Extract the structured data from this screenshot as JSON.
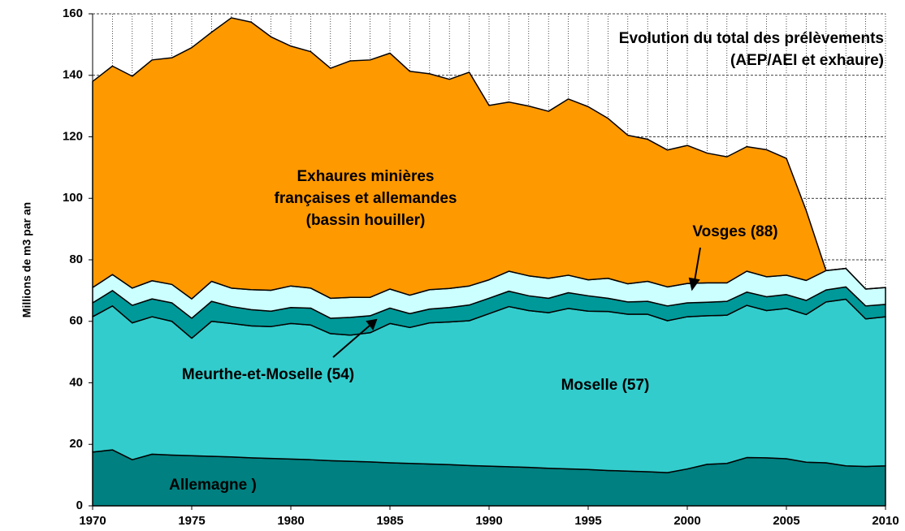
{
  "chart_data": {
    "type": "stacked_area",
    "title": [
      "Evolution du total des prélèvements",
      "(AEP/AEI et exhaure)"
    ],
    "ylabel": "Millions  de  m3  par  an",
    "x": [
      1970,
      1971,
      1972,
      1973,
      1974,
      1975,
      1976,
      1977,
      1978,
      1979,
      1980,
      1981,
      1982,
      1983,
      1984,
      1985,
      1986,
      1987,
      1988,
      1989,
      1990,
      1991,
      1992,
      1993,
      1994,
      1995,
      1996,
      1997,
      1998,
      1999,
      2000,
      2001,
      2002,
      2003,
      2004,
      2005,
      2006,
      2007,
      2008,
      2009,
      2010
    ],
    "xlim": [
      1970,
      2010
    ],
    "xticks": [
      1970,
      1975,
      1980,
      1985,
      1990,
      1995,
      2000,
      2005,
      2010
    ],
    "ylim": [
      0,
      160
    ],
    "yticks": [
      0,
      20,
      40,
      60,
      80,
      100,
      120,
      140,
      160
    ],
    "grid": true,
    "series": [
      {
        "name": [
          "Allemagne )"
        ],
        "color": "#008080",
        "values": [
          17.5,
          18.2,
          15,
          16.8,
          16.5,
          16.3,
          16.1,
          15.9,
          15.6,
          15.4,
          15.2,
          15,
          14.7,
          14.5,
          14.3,
          14,
          13.8,
          13.6,
          13.4,
          13.1,
          12.9,
          12.7,
          12.5,
          12.2,
          12,
          11.8,
          11.5,
          11.3,
          11.1,
          10.8,
          12,
          13.5,
          13.8,
          15.7,
          15.6,
          15.3,
          14.2,
          14,
          13,
          12.8,
          13
        ]
      },
      {
        "name": [
          "Moselle (57)"
        ],
        "color": "#33CCCC",
        "values": [
          44,
          46.8,
          44.5,
          44.7,
          43.5,
          38.2,
          43.9,
          43.4,
          42.9,
          42.9,
          44.1,
          43.8,
          41.3,
          41,
          42,
          45.3,
          44.2,
          45.9,
          46.4,
          47.1,
          49.6,
          52.1,
          51,
          50.6,
          52.2,
          51.5,
          51.7,
          51,
          51.2,
          49.4,
          49.5,
          48.3,
          48.2,
          49.5,
          47.9,
          48.9,
          48,
          52.3,
          54.2,
          48,
          48.5
        ]
      },
      {
        "name": [
          "Meurthe-et-Moselle (54)"
        ],
        "color": "#009999",
        "values": [
          4.5,
          5,
          5.7,
          5.8,
          6,
          6.5,
          6.5,
          5.5,
          5.3,
          5,
          5.2,
          5.5,
          5,
          5.8,
          5.5,
          5,
          4.5,
          4.5,
          4.7,
          5.1,
          5,
          5,
          4.8,
          4.7,
          5.1,
          5,
          4.3,
          4,
          4.2,
          4.8,
          4.5,
          4.4,
          4.5,
          4.3,
          4.5,
          4.5,
          4.6,
          3.9,
          4,
          4.2,
          4
        ]
      },
      {
        "name": [
          "Vosges (88)"
        ],
        "color": "#CCFFFF",
        "values": [
          5,
          5.2,
          5.6,
          5.9,
          6,
          6.3,
          6.5,
          6,
          6.5,
          6.8,
          7,
          6.5,
          6.5,
          6.5,
          6,
          6.2,
          6,
          6.3,
          6.2,
          6.2,
          6,
          6.5,
          6.5,
          6.5,
          5.7,
          5.2,
          6.5,
          5.9,
          6.5,
          6.2,
          6.3,
          6.3,
          6,
          6.8,
          6.5,
          6.3,
          6.5,
          6.3,
          6,
          5.5,
          5.5
        ]
      },
      {
        "name": [
          "Exhaures minières",
          "françaises et allemandes",
          "(bassin houiller)"
        ],
        "color": "#FF9900",
        "values": [
          67,
          67.8,
          68.9,
          71.8,
          73.7,
          81.7,
          81,
          87.9,
          87,
          82.4,
          78,
          76.9,
          74.8,
          76.9,
          77.2,
          76.7,
          72.8,
          70.2,
          68,
          69.5,
          56.7,
          55,
          55.2,
          54.3,
          57.3,
          56.3,
          52,
          48.3,
          46.2,
          44.5,
          44.9,
          42.2,
          41,
          40.5,
          41.3,
          38,
          22.7,
          0,
          0,
          0,
          0
        ]
      }
    ]
  }
}
